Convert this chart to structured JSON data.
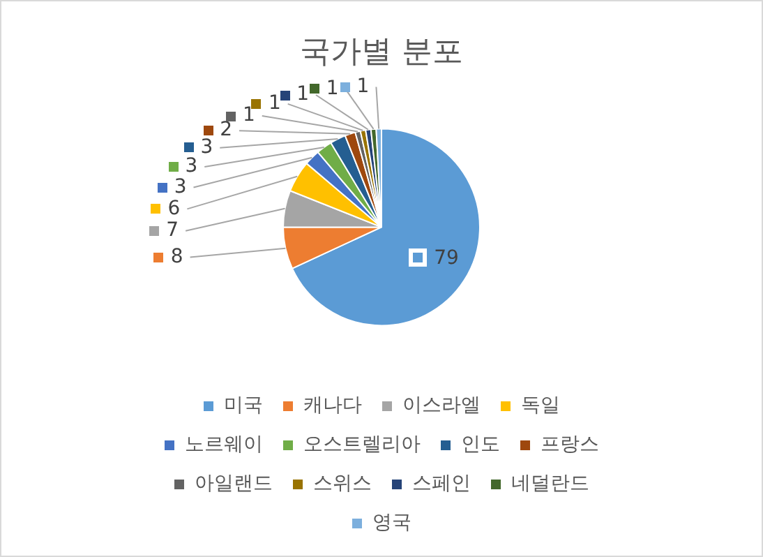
{
  "chart_data": {
    "type": "pie",
    "title": "국가별 분포",
    "categories": [
      "미국",
      "캐나다",
      "이스라엘",
      "독일",
      "노르웨이",
      "오스트렐리아",
      "인도",
      "프랑스",
      "아일랜드",
      "스위스",
      "스페인",
      "네덜란드",
      "영국"
    ],
    "values": [
      79,
      8,
      7,
      6,
      3,
      3,
      3,
      2,
      1,
      1,
      1,
      1,
      1
    ],
    "colors": [
      "#5b9bd5",
      "#ed7d31",
      "#a5a5a5",
      "#ffc000",
      "#4472c4",
      "#70ad47",
      "#255e91",
      "#9e480e",
      "#636363",
      "#997300",
      "#264478",
      "#43682b",
      "#7cafdd"
    ],
    "data_labels": true,
    "legend": "bottom"
  }
}
